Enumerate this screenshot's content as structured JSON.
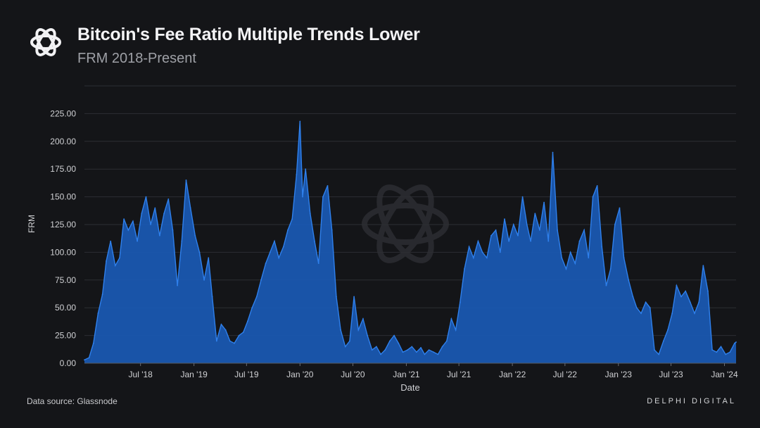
{
  "header": {
    "title": "Bitcoin's Fee Ratio Multiple Trends Lower",
    "subtitle": "FRM 2018-Present",
    "logo_icon": "delphi-knot-icon"
  },
  "footer": {
    "source": "Data source: Glassnode",
    "brand": "DELPHI DIGITAL"
  },
  "colors": {
    "background": "#141518",
    "area_fill": "#1a5bb8",
    "line": "#2f80ec",
    "grid": "#2c2e33",
    "axis_text": "#d0d1d4"
  },
  "chart_data": {
    "type": "area",
    "title": "Bitcoin's Fee Ratio Multiple Trends Lower",
    "subtitle": "FRM 2018-Present",
    "xlabel": "Date",
    "ylabel": "FRM",
    "ylim": [
      0,
      250
    ],
    "yticks": [
      "0.00",
      "25.00",
      "50.00",
      "75.00",
      "100.00",
      "125.00",
      "150.00",
      "175.00",
      "200.00",
      "225.00"
    ],
    "xticks": [
      {
        "label": "Jul '18",
        "date": "2018-07-01"
      },
      {
        "label": "Jan '19",
        "date": "2019-01-01"
      },
      {
        "label": "Jul '19",
        "date": "2019-07-01"
      },
      {
        "label": "Jan '20",
        "date": "2020-01-01"
      },
      {
        "label": "Jul '20",
        "date": "2020-07-01"
      },
      {
        "label": "Jan '21",
        "date": "2021-01-01"
      },
      {
        "label": "Jul '21",
        "date": "2021-07-01"
      },
      {
        "label": "Jan '22",
        "date": "2022-01-01"
      },
      {
        "label": "Jul '22",
        "date": "2022-07-01"
      },
      {
        "label": "Jan '23",
        "date": "2023-01-01"
      },
      {
        "label": "Jul '23",
        "date": "2023-07-01"
      },
      {
        "label": "Jan '24",
        "date": "2024-01-01"
      }
    ],
    "xlim": [
      "2017-12-20",
      "2024-02-10"
    ],
    "grid": true,
    "series": [
      {
        "points": [
          [
            "2017-12-20",
            3
          ],
          [
            "2018-01-05",
            5
          ],
          [
            "2018-01-20",
            18
          ],
          [
            "2018-02-05",
            45
          ],
          [
            "2018-02-20",
            62
          ],
          [
            "2018-03-05",
            92
          ],
          [
            "2018-03-20",
            110
          ],
          [
            "2018-04-05",
            88
          ],
          [
            "2018-04-20",
            95
          ],
          [
            "2018-05-05",
            130
          ],
          [
            "2018-05-20",
            120
          ],
          [
            "2018-06-05",
            128
          ],
          [
            "2018-06-20",
            110
          ],
          [
            "2018-07-05",
            135
          ],
          [
            "2018-07-20",
            150
          ],
          [
            "2018-08-05",
            125
          ],
          [
            "2018-08-20",
            140
          ],
          [
            "2018-09-05",
            115
          ],
          [
            "2018-09-20",
            135
          ],
          [
            "2018-10-05",
            148
          ],
          [
            "2018-10-20",
            120
          ],
          [
            "2018-11-05",
            70
          ],
          [
            "2018-11-20",
            110
          ],
          [
            "2018-12-05",
            165
          ],
          [
            "2018-12-20",
            140
          ],
          [
            "2019-01-05",
            115
          ],
          [
            "2019-01-20",
            100
          ],
          [
            "2019-02-05",
            75
          ],
          [
            "2019-02-20",
            95
          ],
          [
            "2019-03-05",
            60
          ],
          [
            "2019-03-20",
            20
          ],
          [
            "2019-04-05",
            35
          ],
          [
            "2019-04-20",
            30
          ],
          [
            "2019-05-05",
            20
          ],
          [
            "2019-05-20",
            18
          ],
          [
            "2019-06-05",
            25
          ],
          [
            "2019-06-20",
            28
          ],
          [
            "2019-07-05",
            38
          ],
          [
            "2019-07-20",
            50
          ],
          [
            "2019-08-05",
            60
          ],
          [
            "2019-08-20",
            75
          ],
          [
            "2019-09-05",
            90
          ],
          [
            "2019-09-20",
            100
          ],
          [
            "2019-10-05",
            110
          ],
          [
            "2019-10-20",
            95
          ],
          [
            "2019-11-05",
            105
          ],
          [
            "2019-11-20",
            120
          ],
          [
            "2019-12-05",
            130
          ],
          [
            "2019-12-20",
            170
          ],
          [
            "2020-01-01",
            218
          ],
          [
            "2020-01-10",
            150
          ],
          [
            "2020-01-20",
            175
          ],
          [
            "2020-02-05",
            135
          ],
          [
            "2020-02-20",
            110
          ],
          [
            "2020-03-05",
            90
          ],
          [
            "2020-03-20",
            150
          ],
          [
            "2020-04-05",
            160
          ],
          [
            "2020-04-20",
            120
          ],
          [
            "2020-05-05",
            60
          ],
          [
            "2020-05-20",
            30
          ],
          [
            "2020-06-05",
            15
          ],
          [
            "2020-06-20",
            20
          ],
          [
            "2020-07-05",
            60
          ],
          [
            "2020-07-20",
            30
          ],
          [
            "2020-08-05",
            40
          ],
          [
            "2020-08-20",
            25
          ],
          [
            "2020-09-05",
            12
          ],
          [
            "2020-09-20",
            15
          ],
          [
            "2020-10-05",
            8
          ],
          [
            "2020-10-20",
            12
          ],
          [
            "2020-11-05",
            20
          ],
          [
            "2020-11-20",
            25
          ],
          [
            "2020-12-05",
            18
          ],
          [
            "2020-12-20",
            10
          ],
          [
            "2021-01-05",
            12
          ],
          [
            "2021-01-20",
            15
          ],
          [
            "2021-02-05",
            10
          ],
          [
            "2021-02-20",
            14
          ],
          [
            "2021-03-05",
            8
          ],
          [
            "2021-03-20",
            12
          ],
          [
            "2021-04-05",
            10
          ],
          [
            "2021-04-20",
            8
          ],
          [
            "2021-05-05",
            15
          ],
          [
            "2021-05-20",
            20
          ],
          [
            "2021-06-05",
            40
          ],
          [
            "2021-06-20",
            30
          ],
          [
            "2021-07-05",
            55
          ],
          [
            "2021-07-20",
            85
          ],
          [
            "2021-08-05",
            105
          ],
          [
            "2021-08-20",
            95
          ],
          [
            "2021-09-05",
            110
          ],
          [
            "2021-09-20",
            100
          ],
          [
            "2021-10-05",
            95
          ],
          [
            "2021-10-20",
            115
          ],
          [
            "2021-11-05",
            120
          ],
          [
            "2021-11-20",
            100
          ],
          [
            "2021-12-05",
            130
          ],
          [
            "2021-12-20",
            110
          ],
          [
            "2022-01-05",
            125
          ],
          [
            "2022-01-20",
            115
          ],
          [
            "2022-02-05",
            150
          ],
          [
            "2022-02-20",
            125
          ],
          [
            "2022-03-05",
            110
          ],
          [
            "2022-03-20",
            135
          ],
          [
            "2022-04-05",
            120
          ],
          [
            "2022-04-20",
            145
          ],
          [
            "2022-05-05",
            110
          ],
          [
            "2022-05-20",
            190
          ],
          [
            "2022-06-05",
            120
          ],
          [
            "2022-06-20",
            95
          ],
          [
            "2022-07-05",
            85
          ],
          [
            "2022-07-20",
            100
          ],
          [
            "2022-08-05",
            90
          ],
          [
            "2022-08-20",
            110
          ],
          [
            "2022-09-05",
            120
          ],
          [
            "2022-09-20",
            95
          ],
          [
            "2022-10-05",
            150
          ],
          [
            "2022-10-20",
            160
          ],
          [
            "2022-11-05",
            105
          ],
          [
            "2022-11-20",
            70
          ],
          [
            "2022-12-05",
            85
          ],
          [
            "2022-12-20",
            125
          ],
          [
            "2023-01-05",
            140
          ],
          [
            "2023-01-20",
            95
          ],
          [
            "2023-02-05",
            75
          ],
          [
            "2023-02-20",
            60
          ],
          [
            "2023-03-05",
            50
          ],
          [
            "2023-03-20",
            45
          ],
          [
            "2023-04-05",
            55
          ],
          [
            "2023-04-20",
            50
          ],
          [
            "2023-05-05",
            12
          ],
          [
            "2023-05-20",
            8
          ],
          [
            "2023-06-05",
            20
          ],
          [
            "2023-06-20",
            30
          ],
          [
            "2023-07-05",
            45
          ],
          [
            "2023-07-20",
            70
          ],
          [
            "2023-08-05",
            60
          ],
          [
            "2023-08-20",
            65
          ],
          [
            "2023-09-05",
            55
          ],
          [
            "2023-09-20",
            45
          ],
          [
            "2023-10-05",
            55
          ],
          [
            "2023-10-20",
            88
          ],
          [
            "2023-11-05",
            65
          ],
          [
            "2023-11-20",
            12
          ],
          [
            "2023-12-05",
            10
          ],
          [
            "2023-12-20",
            15
          ],
          [
            "2024-01-05",
            8
          ],
          [
            "2024-01-20",
            10
          ],
          [
            "2024-02-05",
            18
          ],
          [
            "2024-02-10",
            19
          ]
        ]
      }
    ]
  }
}
